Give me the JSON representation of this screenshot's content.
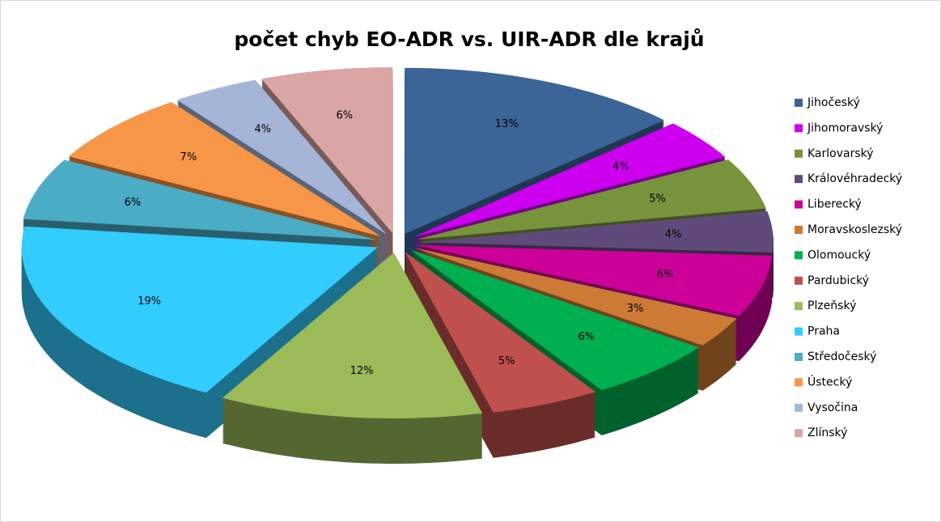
{
  "chart_data": {
    "type": "pie3d",
    "title": "počet chyb EO-ADR vs. UIR-ADR dle krajů",
    "categories": [
      "Jihočeský",
      "Jihomoravský",
      "Karlovarský",
      "Královéhradecký",
      "Liberecký",
      "Moravskoslezský",
      "Olomoucký",
      "Pardubický",
      "Plzeňský",
      "Praha",
      "Středočeský",
      "Ústecký",
      "Vysočina",
      "Zlínský"
    ],
    "values": [
      13,
      4,
      5,
      4,
      6,
      3,
      6,
      5,
      12,
      19,
      6,
      7,
      4,
      6
    ],
    "value_labels": [
      "13%",
      "4%",
      "5%",
      "4%",
      "6%",
      "3%",
      "6%",
      "5%",
      "12%",
      "19%",
      "6%",
      "7%",
      "4%",
      "6%"
    ],
    "colors": [
      "#3b6497",
      "#cc00ee",
      "#77933c",
      "#604a7b",
      "#cc0099",
      "#cc7a35",
      "#00b050",
      "#c0504d",
      "#9bbb59",
      "#33ccff",
      "#4bacc6",
      "#f79646",
      "#a5b5d8",
      "#d9a5a5"
    ],
    "legend": "right"
  }
}
